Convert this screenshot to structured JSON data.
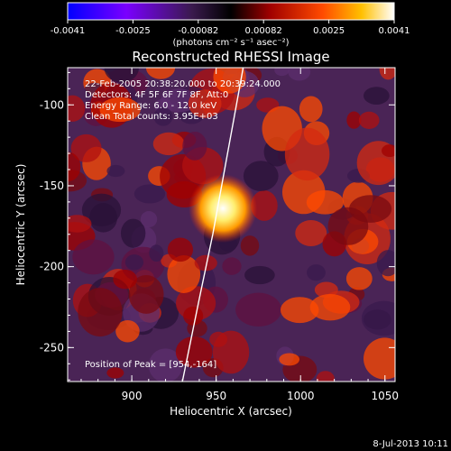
{
  "chart_data": {
    "type": "heatmap",
    "title": "Reconstructed RHESSI Image",
    "xlabel": "Heliocentric X (arcsec)",
    "ylabel": "Heliocentric Y (arcsec)",
    "xlim": [
      862,
      1056
    ],
    "ylim": [
      -271,
      -77
    ],
    "x_ticks": [
      900,
      950,
      1000,
      1050
    ],
    "y_ticks": [
      -100,
      -150,
      -200,
      -250
    ],
    "colorbar": {
      "ticks": [
        "-0.0041",
        "-0.0025",
        "-0.00082",
        "0.00082",
        "0.0025",
        "0.0041"
      ],
      "range": [
        -0.0041,
        0.0041
      ],
      "unit_label": "(photons cm⁻² s⁻¹ asec⁻²)",
      "colormap": [
        "#0000ff",
        "#7a00ff",
        "#5a2a74",
        "#000000",
        "#b00000",
        "#ff4400",
        "#ffb300",
        "#ffffff"
      ]
    },
    "annotations": [
      "22-Feb-2005 20:38:20.000 to 20:39:24.000",
      "Detectors: 4F 5F 6F 7F 8F, Att:0",
      "Energy Range: 6.0 - 12.0 keV",
      "Clean    Total counts: 3.95E+03"
    ],
    "peak": {
      "label": "Position of Peak = [954,-164]",
      "x": 954,
      "y": -164
    },
    "limb_curve": [
      [
        930,
        -271
      ],
      [
        940,
        -220
      ],
      [
        948,
        -180
      ],
      [
        955,
        -140
      ],
      [
        962,
        -100
      ],
      [
        966,
        -77
      ]
    ]
  },
  "footer": {
    "date": "8-Jul-2013 10:11"
  }
}
